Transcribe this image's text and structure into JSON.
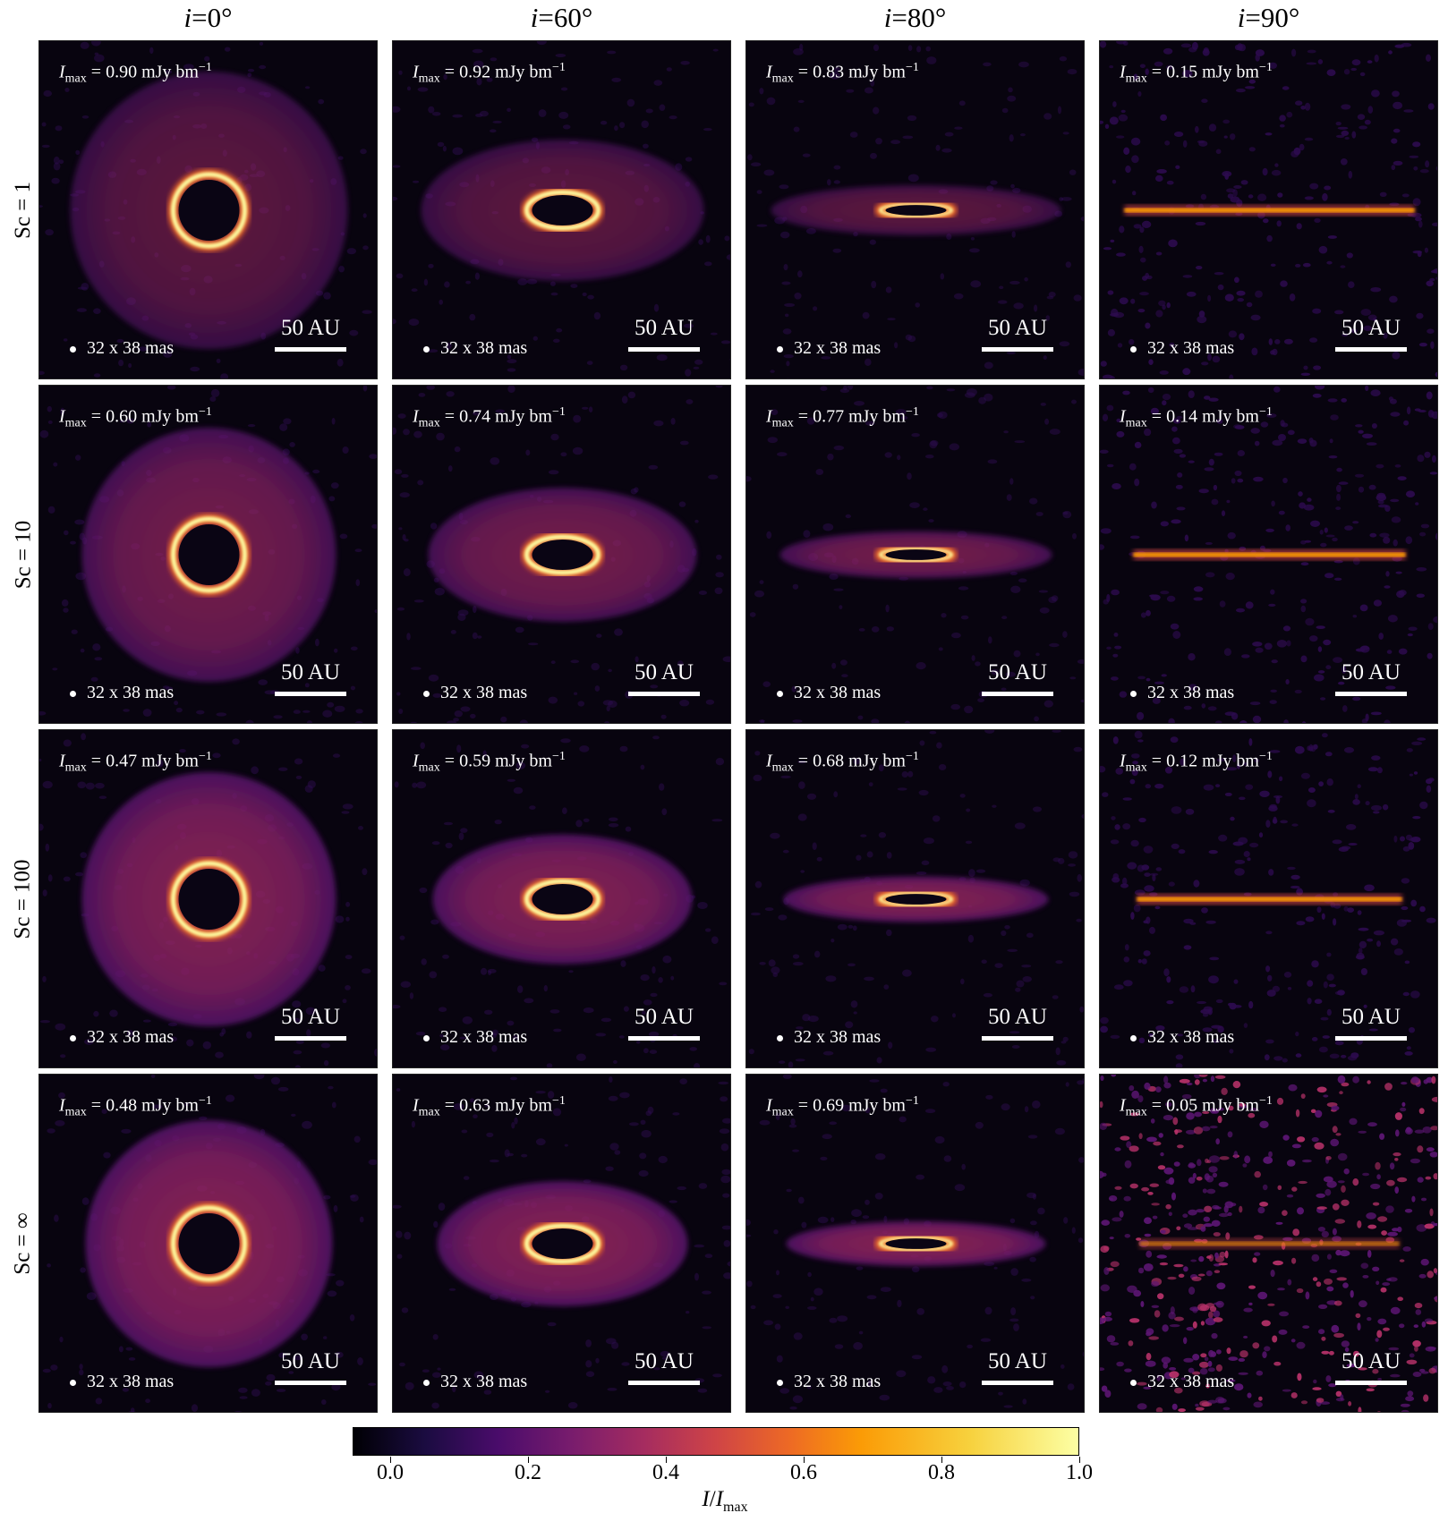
{
  "columns": [
    {
      "label_var": "i",
      "label_val": "=0°"
    },
    {
      "label_var": "i",
      "label_val": "=60°"
    },
    {
      "label_var": "i",
      "label_val": "=80°"
    },
    {
      "label_var": "i",
      "label_val": "=90°"
    }
  ],
  "rows": [
    {
      "label": "Sc = 1"
    },
    {
      "label": "Sc = 10"
    },
    {
      "label": "Sc = 100"
    },
    {
      "label": "Sc = ∞"
    }
  ],
  "panel_text": {
    "imax_symbol": "I",
    "imax_sub": "max",
    "imax_eq": " = ",
    "imax_unit": " mJy bm",
    "imax_exp": "−1",
    "beam": "32 x 38 mas",
    "scale": "50 AU"
  },
  "imax_values": [
    [
      "0.90",
      "0.92",
      "0.83",
      "0.15"
    ],
    [
      "0.60",
      "0.74",
      "0.77",
      "0.14"
    ],
    [
      "0.47",
      "0.59",
      "0.68",
      "0.12"
    ],
    [
      "0.48",
      "0.63",
      "0.69",
      "0.05"
    ]
  ],
  "colorbar": {
    "ticks": [
      "0.0",
      "0.2",
      "0.4",
      "0.6",
      "0.8",
      "1.0"
    ],
    "label_symbol": "I",
    "label_mid": "/",
    "label_denom": "I",
    "label_sub": "max",
    "colormap": "inferno"
  }
}
